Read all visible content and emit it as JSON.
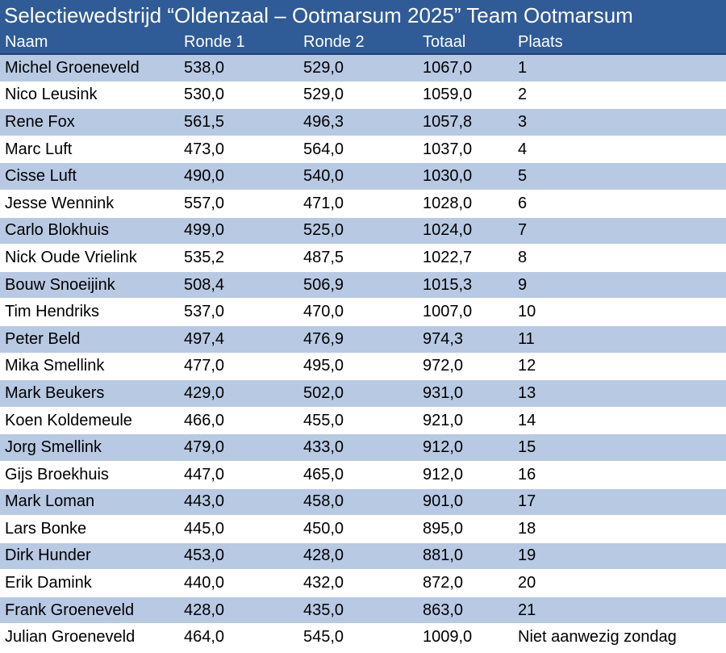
{
  "title": "Selectiewedstrijd “Oldenzaal – Ootmarsum 2025” Team Ootmarsum",
  "columns": [
    "Naam",
    "Ronde 1",
    "Ronde 2",
    "Totaal",
    "Plaats"
  ],
  "rows": [
    [
      "Michel Groeneveld",
      "538,0",
      "529,0",
      "1067,0",
      "1"
    ],
    [
      "Nico Leusink",
      "530,0",
      "529,0",
      "1059,0",
      "2"
    ],
    [
      "Rene Fox",
      "561,5",
      "496,3",
      "1057,8",
      "3"
    ],
    [
      "Marc Luft",
      "473,0",
      "564,0",
      "1037,0",
      "4"
    ],
    [
      "Cisse Luft",
      "490,0",
      "540,0",
      "1030,0",
      "5"
    ],
    [
      "Jesse Wennink",
      "557,0",
      "471,0",
      "1028,0",
      "6"
    ],
    [
      "Carlo Blokhuis",
      "499,0",
      "525,0",
      "1024,0",
      "7"
    ],
    [
      "Nick Oude Vrielink",
      "535,2",
      "487,5",
      "1022,7",
      "8"
    ],
    [
      "Bouw Snoeijink",
      "508,4",
      "506,9",
      "1015,3",
      "9"
    ],
    [
      "Tim Hendriks",
      "537,0",
      "470,0",
      "1007,0",
      "10"
    ],
    [
      "Peter Beld",
      "497,4",
      "476,9",
      "974,3",
      "11"
    ],
    [
      "Mika Smellink",
      "477,0",
      "495,0",
      "972,0",
      "12"
    ],
    [
      "Mark Beukers",
      "429,0",
      "502,0",
      "931,0",
      "13"
    ],
    [
      "Koen Koldemeule",
      "466,0",
      "455,0",
      "921,0",
      "14"
    ],
    [
      "Jorg Smellink",
      "479,0",
      "433,0",
      "912,0",
      "15"
    ],
    [
      "Gijs Broekhuis",
      "447,0",
      "465,0",
      "912,0",
      "16"
    ],
    [
      "Mark Loman",
      "443,0",
      "458,0",
      "901,0",
      "17"
    ],
    [
      "Lars Bonke",
      "445,0",
      "450,0",
      "895,0",
      "18"
    ],
    [
      "Dirk Hunder",
      "453,0",
      "428,0",
      "881,0",
      "19"
    ],
    [
      "Erik Damink",
      "440,0",
      "432,0",
      "872,0",
      "20"
    ],
    [
      "Frank Groeneveld",
      "428,0",
      "435,0",
      "863,0",
      "21"
    ],
    [
      "Julian Groeneveld",
      "464,0",
      "545,0",
      "1009,0",
      "Niet aanwezig zondag"
    ]
  ],
  "colors": {
    "header_bg": "#2f5b97",
    "header_text": "#ffffff",
    "row_band": "#b8c9e3",
    "row_plain": "#ffffff"
  }
}
